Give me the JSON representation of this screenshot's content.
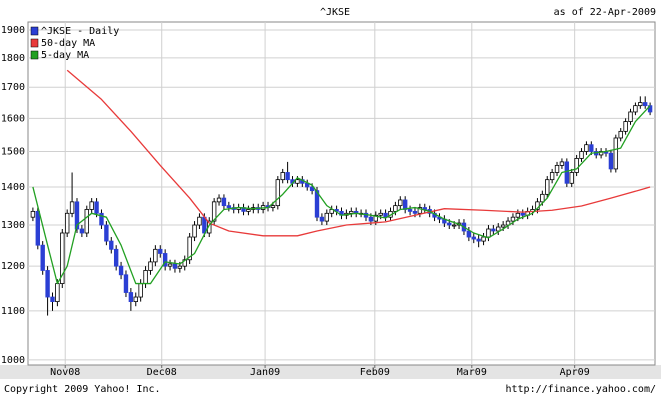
{
  "chart_data": {
    "type": "candlestick",
    "title": "^JKSE",
    "subtitle": "as of 22-Apr-2009",
    "log_scale": true,
    "grid": true,
    "legend": "top-left",
    "ylim": [
      990,
      1930
    ],
    "yticks": [
      1000,
      1100,
      1200,
      1300,
      1400,
      1500,
      1600,
      1700,
      1800,
      1900
    ],
    "xlim": [
      -1,
      127
    ],
    "xticks": [
      {
        "value": 6.6,
        "label": "Nov08"
      },
      {
        "value": 26.3,
        "label": "Dec08"
      },
      {
        "value": 47.4,
        "label": "Jan09"
      },
      {
        "value": 69.8,
        "label": "Feb09"
      },
      {
        "value": 89.6,
        "label": "Mar09"
      },
      {
        "value": 110.6,
        "label": "Apr09"
      }
    ],
    "series": [
      {
        "name": "^JKSE - Daily",
        "type": "candlestick",
        "color": "#2b3fd4",
        "up_color": "#ffffff",
        "x": [
          0,
          1,
          2,
          3,
          4,
          5,
          6,
          7,
          8,
          9,
          10,
          11,
          12,
          13,
          14,
          15,
          16,
          17,
          18,
          19,
          20,
          21,
          22,
          23,
          24,
          25,
          26,
          27,
          28,
          29,
          30,
          31,
          32,
          33,
          34,
          35,
          36,
          37,
          38,
          39,
          40,
          41,
          42,
          43,
          44,
          45,
          46,
          47,
          48,
          49,
          50,
          51,
          52,
          53,
          54,
          55,
          56,
          57,
          58,
          59,
          60,
          61,
          62,
          63,
          64,
          65,
          66,
          67,
          68,
          69,
          70,
          71,
          72,
          73,
          74,
          75,
          76,
          77,
          78,
          79,
          80,
          81,
          82,
          83,
          84,
          85,
          86,
          87,
          88,
          89,
          90,
          91,
          92,
          93,
          94,
          95,
          96,
          97,
          98,
          99,
          100,
          101,
          102,
          103,
          104,
          105,
          106,
          107,
          108,
          109,
          110,
          111,
          112,
          113,
          114,
          115,
          116,
          117,
          118,
          119,
          120,
          121,
          122,
          123,
          124,
          125,
          126
        ],
        "open": [
          1320,
          1335,
          1250,
          1190,
          1130,
          1120,
          1160,
          1280,
          1330,
          1360,
          1290,
          1280,
          1340,
          1360,
          1330,
          1300,
          1260,
          1240,
          1200,
          1180,
          1140,
          1120,
          1130,
          1160,
          1190,
          1210,
          1240,
          1230,
          1200,
          1205,
          1195,
          1200,
          1215,
          1270,
          1300,
          1320,
          1280,
          1310,
          1360,
          1370,
          1350,
          1345,
          1340,
          1345,
          1335,
          1340,
          1345,
          1340,
          1350,
          1345,
          1350,
          1420,
          1440,
          1420,
          1410,
          1420,
          1410,
          1400,
          1390,
          1320,
          1310,
          1330,
          1340,
          1335,
          1325,
          1330,
          1335,
          1330,
          1330,
          1320,
          1310,
          1325,
          1330,
          1320,
          1335,
          1350,
          1365,
          1340,
          1335,
          1330,
          1345,
          1340,
          1330,
          1320,
          1315,
          1305,
          1300,
          1300,
          1305,
          1285,
          1270,
          1265,
          1260,
          1270,
          1290,
          1285,
          1295,
          1300,
          1310,
          1320,
          1330,
          1325,
          1335,
          1340,
          1360,
          1380,
          1420,
          1440,
          1460,
          1470,
          1410,
          1440,
          1480,
          1500,
          1520,
          1500,
          1490,
          1500,
          1495,
          1450,
          1540,
          1560,
          1590,
          1620,
          1640,
          1650,
          1640
        ],
        "high": [
          1345,
          1345,
          1260,
          1200,
          1140,
          1170,
          1290,
          1340,
          1440,
          1370,
          1300,
          1350,
          1370,
          1370,
          1340,
          1310,
          1270,
          1250,
          1210,
          1190,
          1150,
          1140,
          1170,
          1200,
          1220,
          1250,
          1250,
          1240,
          1215,
          1215,
          1210,
          1225,
          1280,
          1310,
          1330,
          1330,
          1320,
          1370,
          1380,
          1380,
          1360,
          1355,
          1355,
          1355,
          1350,
          1355,
          1355,
          1360,
          1360,
          1360,
          1430,
          1450,
          1470,
          1430,
          1430,
          1430,
          1420,
          1410,
          1400,
          1330,
          1340,
          1350,
          1350,
          1345,
          1340,
          1345,
          1345,
          1340,
          1340,
          1330,
          1335,
          1340,
          1340,
          1345,
          1360,
          1375,
          1375,
          1350,
          1345,
          1355,
          1355,
          1350,
          1340,
          1330,
          1325,
          1315,
          1310,
          1315,
          1315,
          1295,
          1280,
          1275,
          1280,
          1300,
          1300,
          1305,
          1310,
          1320,
          1330,
          1340,
          1340,
          1345,
          1350,
          1370,
          1390,
          1430,
          1450,
          1470,
          1480,
          1480,
          1450,
          1490,
          1510,
          1530,
          1530,
          1510,
          1510,
          1510,
          1505,
          1550,
          1570,
          1600,
          1630,
          1650,
          1670,
          1670,
          1650
        ],
        "low": [
          1310,
          1240,
          1180,
          1090,
          1100,
          1110,
          1150,
          1270,
          1320,
          1280,
          1270,
          1270,
          1330,
          1320,
          1290,
          1250,
          1230,
          1190,
          1170,
          1130,
          1100,
          1110,
          1120,
          1150,
          1180,
          1200,
          1220,
          1190,
          1190,
          1185,
          1185,
          1190,
          1205,
          1260,
          1290,
          1270,
          1270,
          1300,
          1350,
          1340,
          1335,
          1330,
          1330,
          1325,
          1325,
          1330,
          1330,
          1330,
          1335,
          1335,
          1340,
          1410,
          1410,
          1400,
          1400,
          1400,
          1390,
          1380,
          1310,
          1300,
          1300,
          1320,
          1325,
          1315,
          1315,
          1320,
          1320,
          1320,
          1310,
          1300,
          1300,
          1315,
          1310,
          1310,
          1325,
          1340,
          1330,
          1325,
          1320,
          1320,
          1330,
          1320,
          1310,
          1305,
          1295,
          1290,
          1290,
          1290,
          1275,
          1260,
          1255,
          1245,
          1250,
          1260,
          1275,
          1275,
          1285,
          1290,
          1300,
          1310,
          1315,
          1315,
          1325,
          1330,
          1350,
          1370,
          1410,
          1430,
          1450,
          1400,
          1400,
          1430,
          1470,
          1490,
          1490,
          1480,
          1480,
          1485,
          1440,
          1440,
          1530,
          1550,
          1580,
          1610,
          1630,
          1630,
          1610
        ],
        "close": [
          1335,
          1250,
          1190,
          1130,
          1120,
          1160,
          1280,
          1330,
          1360,
          1290,
          1280,
          1340,
          1360,
          1330,
          1300,
          1260,
          1240,
          1200,
          1180,
          1140,
          1120,
          1130,
          1160,
          1190,
          1210,
          1240,
          1230,
          1200,
          1205,
          1195,
          1200,
          1215,
          1270,
          1300,
          1320,
          1280,
          1310,
          1360,
          1370,
          1350,
          1345,
          1340,
          1345,
          1335,
          1340,
          1345,
          1340,
          1350,
          1345,
          1350,
          1420,
          1440,
          1420,
          1410,
          1420,
          1410,
          1400,
          1390,
          1320,
          1310,
          1330,
          1340,
          1335,
          1325,
          1330,
          1335,
          1330,
          1330,
          1320,
          1310,
          1325,
          1330,
          1320,
          1335,
          1350,
          1365,
          1340,
          1335,
          1330,
          1345,
          1340,
          1330,
          1320,
          1315,
          1305,
          1300,
          1300,
          1305,
          1285,
          1270,
          1265,
          1260,
          1270,
          1290,
          1285,
          1295,
          1300,
          1310,
          1320,
          1330,
          1325,
          1335,
          1340,
          1360,
          1380,
          1420,
          1440,
          1460,
          1470,
          1410,
          1440,
          1480,
          1500,
          1520,
          1500,
          1490,
          1500,
          1495,
          1450,
          1540,
          1560,
          1590,
          1620,
          1640,
          1650,
          1640,
          1620
        ]
      },
      {
        "name": "50-day MA",
        "type": "line",
        "color": "#e83a3a",
        "x": [
          7,
          14,
          20,
          26,
          32,
          36,
          40,
          47,
          54,
          58,
          64,
          72,
          78,
          84,
          92,
          100,
          106,
          112,
          118,
          124,
          126
        ],
        "values": [
          1757,
          1660,
          1560,
          1460,
          1370,
          1305,
          1285,
          1273,
          1273,
          1285,
          1300,
          1308,
          1325,
          1342,
          1338,
          1333,
          1338,
          1349,
          1370,
          1392,
          1400
        ]
      },
      {
        "name": "5-day MA",
        "type": "line",
        "color": "#22a022",
        "x": [
          0,
          3,
          5,
          7,
          9,
          12,
          15,
          18,
          21,
          24,
          27,
          30,
          33,
          36,
          39,
          42,
          45,
          48,
          51,
          54,
          57,
          60,
          63,
          66,
          69,
          72,
          75,
          78,
          81,
          84,
          87,
          90,
          93,
          96,
          99,
          102,
          105,
          108,
          111,
          114,
          117,
          120,
          123,
          126
        ],
        "values": [
          1400,
          1250,
          1160,
          1200,
          1300,
          1330,
          1320,
          1250,
          1160,
          1160,
          1210,
          1205,
          1230,
          1300,
          1340,
          1345,
          1342,
          1345,
          1380,
          1425,
          1405,
          1350,
          1325,
          1330,
          1325,
          1318,
          1340,
          1345,
          1335,
          1315,
          1302,
          1280,
          1268,
          1290,
          1315,
          1330,
          1370,
          1440,
          1450,
          1495,
          1500,
          1510,
          1590,
          1640
        ]
      }
    ]
  },
  "footer": {
    "copyright": "Copyright 2009 Yahoo! Inc.",
    "source": "http://finance.yahoo.com/"
  }
}
